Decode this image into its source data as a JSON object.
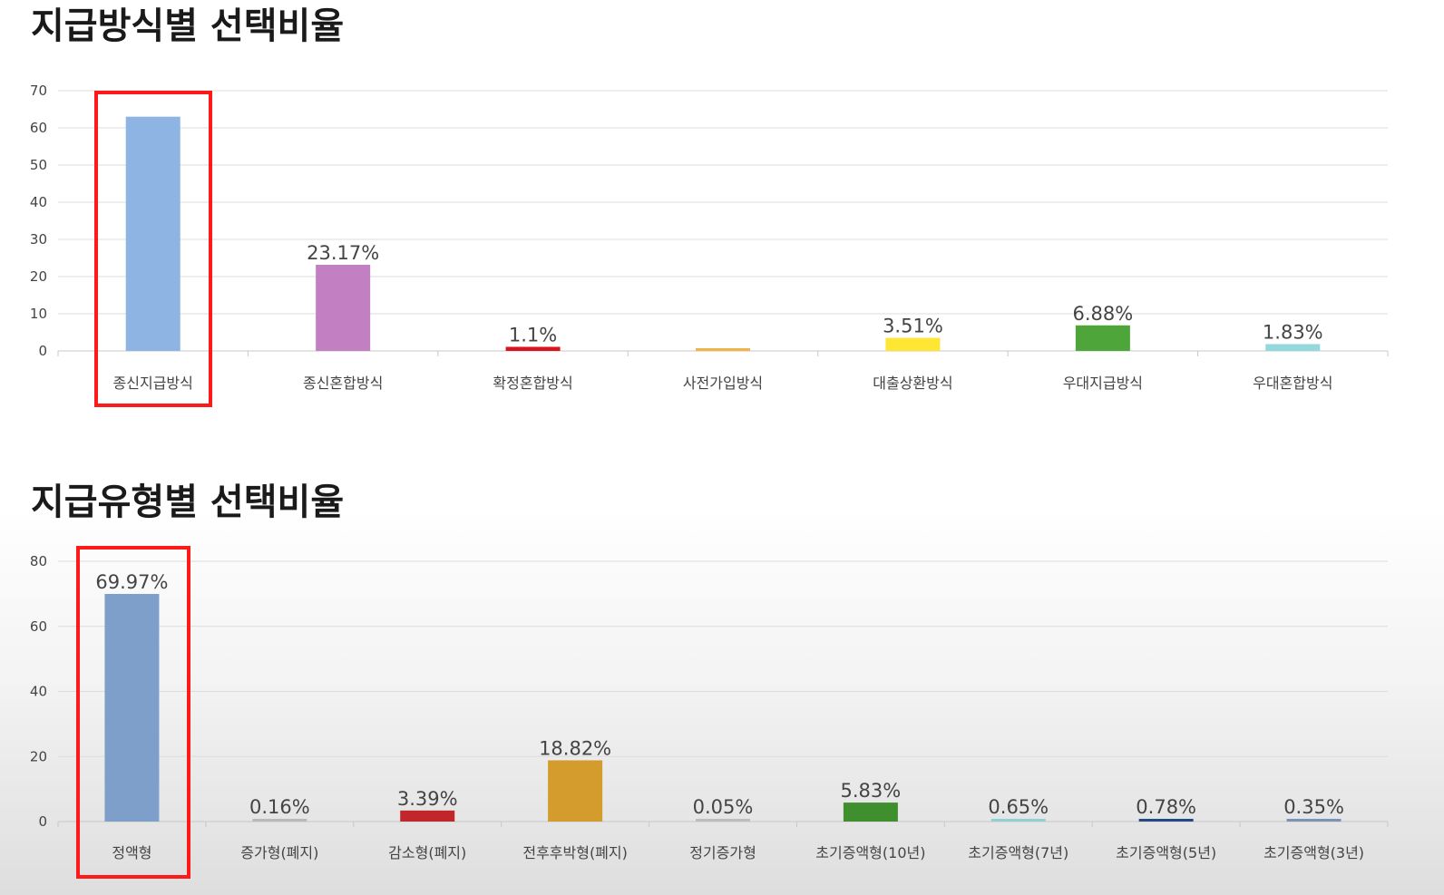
{
  "chart_data": [
    {
      "type": "bar",
      "title": "지급방식별 선택비율",
      "categories": [
        "종신지급방식",
        "종신혼합방식",
        "확정혼합방식",
        "사전가입방식",
        "대출상환방식",
        "우대지급방식",
        "우대혼합방식"
      ],
      "values": [
        63,
        23.17,
        1.1,
        0.5,
        3.51,
        6.88,
        1.83
      ],
      "data_labels": [
        "",
        "23.17%",
        "1.1%",
        "",
        "3.51%",
        "6.88%",
        "1.83%"
      ],
      "colors": [
        "#8db4e2",
        "#c27fc2",
        "#d9141e",
        "#f0b44a",
        "#ffe633",
        "#4ea53a",
        "#92d8dc"
      ],
      "ylim": [
        0,
        70
      ],
      "yticks": [
        0,
        10,
        20,
        30,
        40,
        50,
        60,
        70
      ],
      "grid": true,
      "highlight_index": 0,
      "highlight_color": "#ff1a1a"
    },
    {
      "type": "bar",
      "title": "지급유형별 선택비율",
      "categories": [
        "정액형",
        "증가형(폐지)",
        "감소형(폐지)",
        "전후후박형(폐지)",
        "정기증가형",
        "초기증액형(10년)",
        "초기증액형(7년)",
        "초기증액형(5년)",
        "초기증액형(3년)"
      ],
      "values": [
        69.97,
        0.16,
        3.39,
        18.82,
        0.05,
        5.83,
        0.65,
        0.78,
        0.35
      ],
      "data_labels": [
        "69.97%",
        "0.16%",
        "3.39%",
        "18.82%",
        "0.05%",
        "5.83%",
        "0.65%",
        "0.78%",
        "0.35%"
      ],
      "colors": [
        "#7d9fc9",
        "#b9b9b9",
        "#c0262a",
        "#d39c2c",
        "#bdbdbd",
        "#3f8f2f",
        "#8fd0d2",
        "#234a82",
        "#7c93b5"
      ],
      "ylim": [
        0,
        80
      ],
      "yticks": [
        0,
        20,
        40,
        60,
        80
      ],
      "grid": true,
      "highlight_index": 0,
      "highlight_color": "#ff1a1a"
    }
  ]
}
